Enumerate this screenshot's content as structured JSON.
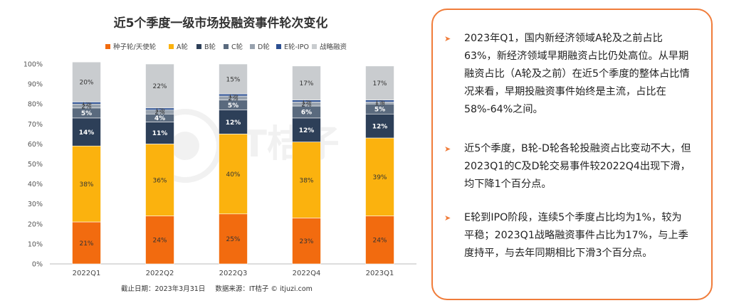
{
  "chart_data": {
    "type": "bar",
    "stacked": true,
    "title": "近5个季度一级市场投融资事件轮次变化",
    "categories": [
      "2022Q1",
      "2022Q2",
      "2022Q3",
      "2022Q4",
      "2023Q1"
    ],
    "series": [
      {
        "name": "种子轮/天使轮",
        "color": "#f26b0f",
        "values": [
          21,
          24,
          25,
          23,
          24
        ]
      },
      {
        "name": "A轮",
        "color": "#fbb20e",
        "values": [
          38,
          36,
          40,
          38,
          39
        ]
      },
      {
        "name": "B轮",
        "color": "#2d3f58",
        "values": [
          14,
          11,
          12,
          12,
          12
        ]
      },
      {
        "name": "C轮",
        "color": "#5a6a7e",
        "values": [
          5,
          4,
          5,
          6,
          5
        ]
      },
      {
        "name": "D轮",
        "color": "#98a2ae",
        "values": [
          2,
          2,
          2,
          2,
          1
        ]
      },
      {
        "name": "E轮-IPO",
        "color": "#2c4f91",
        "values": [
          1,
          1,
          1,
          1,
          1
        ]
      },
      {
        "name": "战略融资",
        "color": "#c9cccf",
        "values": [
          20,
          22,
          15,
          17,
          17
        ]
      }
    ],
    "data_labels": [
      [
        "21%",
        "38%",
        "14%",
        "5%",
        "2%",
        "1%",
        "20%"
      ],
      [
        "24%",
        "36%",
        "11%",
        "4%",
        "2%",
        "1%",
        "22%"
      ],
      [
        "25%",
        "40%",
        "12%",
        "5%",
        "2%",
        "1%",
        "15%"
      ],
      [
        "23%",
        "38%",
        "12%",
        "6%",
        "2%",
        "1%",
        "17%"
      ],
      [
        "24%",
        "39%",
        "12%",
        "5%",
        "1%",
        "1%",
        "17%"
      ]
    ],
    "y_ticks": [
      "0%",
      "10%",
      "20%",
      "30%",
      "40%",
      "50%",
      "60%",
      "70%",
      "80%",
      "90%",
      "100%"
    ],
    "ylim": [
      0,
      100
    ],
    "legend_position": "top",
    "grid": false
  },
  "footnote": {
    "date": "截止日期：2023年3月31日",
    "source": "数据来源：IT桔子 © itjuzi.com"
  },
  "panel": {
    "bullets": [
      "2023年Q1，国内新经济领域A轮及之前占比63%，新经济领域早期融资占比仍处高位。从早期融资占比（A轮及之前）在近5个季度的整体占比情况来看，早期投融资事件始终是主流，占比在58%-64%之间。",
      "近5个季度，B轮-D轮各轮投融资占比变动不大，但2023Q1的C及D轮交易事件较2022Q4出现下滑，均下降1个百分点。",
      "E轮到IPO阶段，连续5个季度占比均为1%，较为平稳；2023Q1战略融资事件占比为17%，与上季度持平，与去年同期相比下滑3个百分点。"
    ],
    "accent_color": "#f07c3a"
  }
}
